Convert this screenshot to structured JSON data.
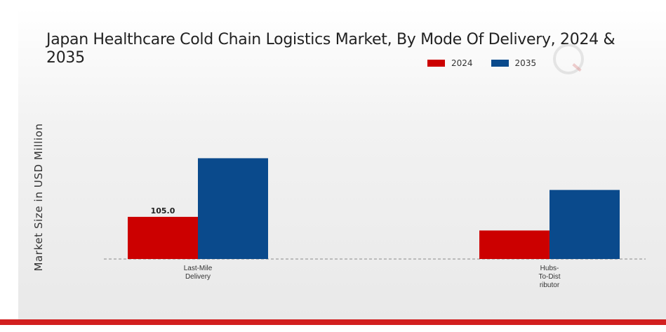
{
  "chart_data": {
    "type": "bar",
    "title": "Japan Healthcare Cold Chain Logistics Market, By Mode Of Delivery, 2024 & 2035",
    "xlabel": "",
    "ylabel": "Market Size in USD Million",
    "categories": [
      "Last-Mile\nDelivery",
      "Hubs-\nTo-Dist\nributor"
    ],
    "series": [
      {
        "name": "2024",
        "color": "#cc0000",
        "values": [
          105.0,
          71.0
        ]
      },
      {
        "name": "2035",
        "color": "#0a4a8c",
        "values": [
          251.0,
          172.0
        ]
      }
    ],
    "data_labels": [
      {
        "series": 0,
        "category": 0,
        "text": "105.0"
      }
    ],
    "ylim": [
      0,
      300
    ],
    "grid": false,
    "legend_position": "top-right",
    "baseline_style": "dashed"
  }
}
